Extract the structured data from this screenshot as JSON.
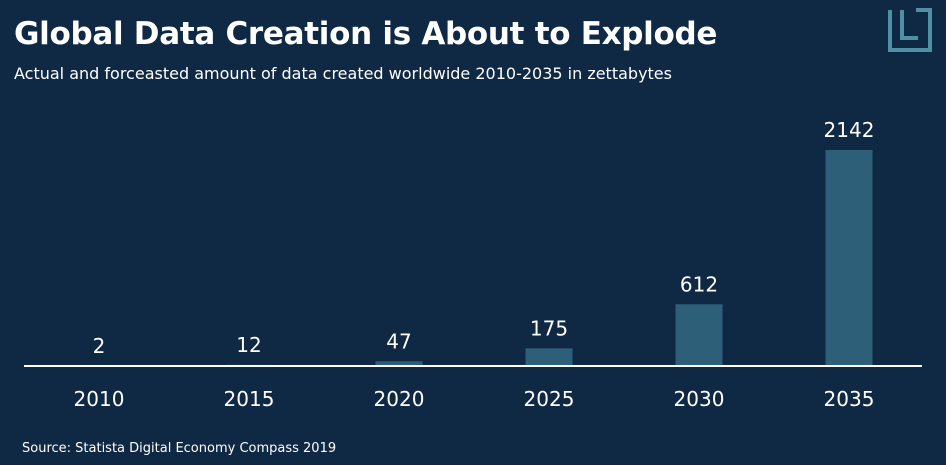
{
  "title": "Global Data Creation is About to Explode",
  "subtitle": "Actual and forceasted amount of data created worldwide 2010-2035 in zettabytes",
  "source": "Source: Statista Digital Economy Compass 2019",
  "logo_icon": "statista-logo-icon",
  "colors": {
    "background": "#0f2945",
    "bar": "#2d5f78",
    "axis": "#ffffff",
    "text": "#ffffff",
    "logo": "#4f8fa3"
  },
  "chart_data": {
    "type": "bar",
    "title": "Global Data Creation is About to Explode",
    "subtitle": "Actual and forceasted amount of data created worldwide 2010-2035 in zettabytes",
    "categories": [
      "2010",
      "2015",
      "2020",
      "2025",
      "2030",
      "2035"
    ],
    "values": [
      2,
      12,
      47,
      175,
      612,
      2142
    ],
    "value_labels": [
      "2",
      "12",
      "47",
      "175",
      "612",
      "2142"
    ],
    "xlabel": "",
    "ylabel": "",
    "ylim": [
      0,
      2142
    ],
    "grid": false,
    "legend": "none"
  }
}
